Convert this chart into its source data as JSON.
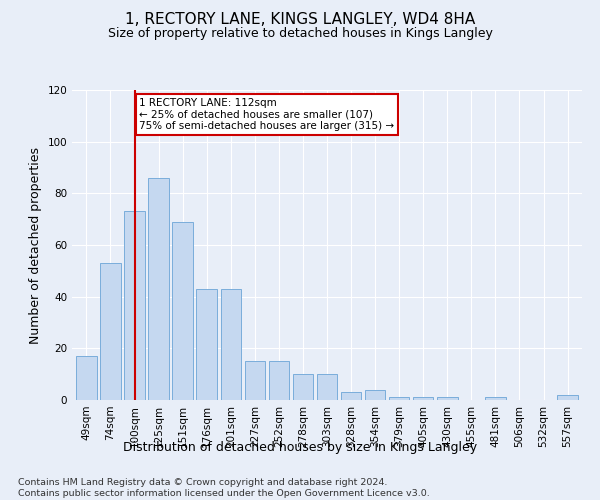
{
  "title": "1, RECTORY LANE, KINGS LANGLEY, WD4 8HA",
  "subtitle": "Size of property relative to detached houses in Kings Langley",
  "xlabel": "Distribution of detached houses by size in Kings Langley",
  "ylabel": "Number of detached properties",
  "categories": [
    "49sqm",
    "74sqm",
    "100sqm",
    "125sqm",
    "151sqm",
    "176sqm",
    "201sqm",
    "227sqm",
    "252sqm",
    "278sqm",
    "303sqm",
    "328sqm",
    "354sqm",
    "379sqm",
    "405sqm",
    "430sqm",
    "455sqm",
    "481sqm",
    "506sqm",
    "532sqm",
    "557sqm"
  ],
  "values": [
    17,
    53,
    73,
    86,
    69,
    43,
    43,
    15,
    15,
    10,
    10,
    3,
    4,
    1,
    1,
    1,
    0,
    1,
    0,
    0,
    2
  ],
  "bar_color": "#c5d8f0",
  "bar_edge_color": "#7aaddb",
  "vline_x": 2,
  "vline_color": "#cc0000",
  "annotation_text": "1 RECTORY LANE: 112sqm\n← 25% of detached houses are smaller (107)\n75% of semi-detached houses are larger (315) →",
  "annotation_box_color": "#cc0000",
  "ylim": [
    0,
    120
  ],
  "yticks": [
    0,
    20,
    40,
    60,
    80,
    100,
    120
  ],
  "footer_line1": "Contains HM Land Registry data © Crown copyright and database right 2024.",
  "footer_line2": "Contains public sector information licensed under the Open Government Licence v3.0.",
  "bg_color": "#e8eef8",
  "plot_bg_color": "#e8eef8",
  "title_fontsize": 11,
  "subtitle_fontsize": 9,
  "axis_label_fontsize": 9,
  "tick_fontsize": 7.5,
  "footer_fontsize": 6.8,
  "ann_fontsize": 7.5
}
